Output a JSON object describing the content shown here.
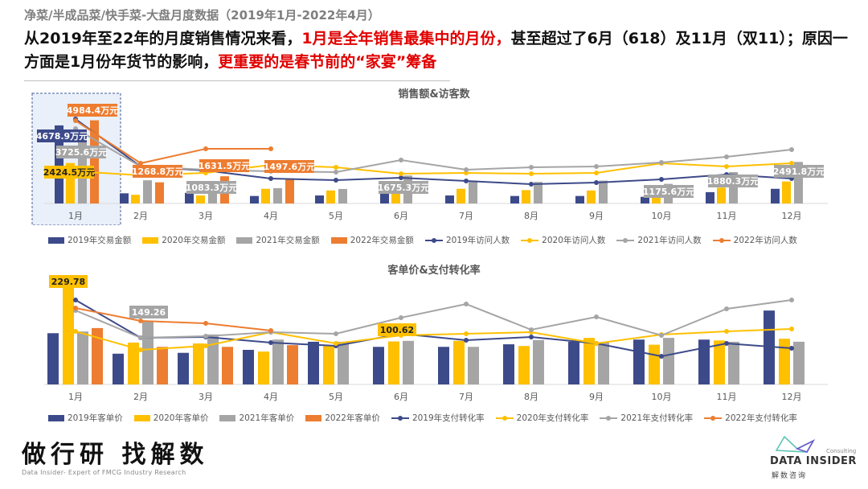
{
  "header": {
    "subtitle": "净菜/半成品菜/快手菜-大盘月度数据（2019年1月-2022年4月）",
    "headline_parts": [
      {
        "text": "从2019年至22年的月度销售情况来看，",
        "highlight": false
      },
      {
        "text": "1月是全年销售最集中的月份，",
        "highlight": true
      },
      {
        "text": "甚至超过了6月（618）及11月（双11）；原因一方面是1月份年货节的影响，",
        "highlight": false
      },
      {
        "text": "更重要的是春节前的“家宴”筹备",
        "highlight": true
      }
    ]
  },
  "colors": {
    "2019": "#3d4a8a",
    "2020": "#ffc000",
    "2021": "#a5a5a5",
    "2022": "#ed7d31",
    "highlight_text": "#e00000",
    "highlight_box": "#dbe6f5"
  },
  "chart_data": [
    {
      "type": "bar+line",
      "title": "销售额&访客数",
      "categories": [
        "1月",
        "2月",
        "3月",
        "4月",
        "5月",
        "6月",
        "7月",
        "8月",
        "9月",
        "10月",
        "11月",
        "12月"
      ],
      "bar_unit": "万元",
      "highlighted_category": "1月",
      "bar_series": [
        {
          "name": "2019年交易金额",
          "color": "#3d4a8a",
          "values": [
            4678.9,
            610,
            640,
            450,
            480,
            680,
            480,
            450,
            450,
            400,
            680,
            880
          ]
        },
        {
          "name": "2020年交易金额",
          "color": "#ffc000",
          "values": [
            2424.5,
            520,
            480,
            880,
            780,
            680,
            880,
            800,
            780,
            500,
            950,
            1320
          ]
        },
        {
          "name": "2021年交易金额",
          "color": "#a5a5a5",
          "values": [
            3725.6,
            1390,
            1083.3,
            920,
            870,
            1675.3,
            1370,
            1290,
            1370,
            1175.6,
            1880.3,
            2491.8
          ]
        },
        {
          "name": "2022年交易金额",
          "color": "#ed7d31",
          "values": [
            4984.4,
            1268.8,
            1631.5,
            1497.6,
            null,
            null,
            null,
            null,
            null,
            null,
            null,
            null
          ]
        }
      ],
      "line_series_note_relative_scale": true,
      "line_series": [
        {
          "name": "2019年访问人数",
          "color": "#3d4a8a",
          "values": [
            105,
            46,
            41,
            31,
            29,
            32,
            28,
            24,
            26,
            30,
            36,
            31
          ]
        },
        {
          "name": "2020年访问人数",
          "color": "#ffc000",
          "values": [
            40,
            35,
            38,
            48,
            45,
            37,
            38,
            37,
            38,
            50,
            46,
            50
          ]
        },
        {
          "name": "2021年访问人数",
          "color": "#a5a5a5",
          "values": [
            93,
            46,
            42,
            40,
            39,
            54,
            42,
            45,
            46,
            51,
            58,
            67
          ]
        },
        {
          "name": "2022年访问人数",
          "color": "#ed7d31",
          "values": [
            103,
            50,
            68,
            68,
            null,
            null,
            null,
            null,
            null,
            null,
            null,
            null
          ]
        }
      ],
      "data_labels": [
        {
          "series": 3,
          "month": 0,
          "text": "4984.4万元"
        },
        {
          "series": 0,
          "month": 0,
          "text": "4678.9万元"
        },
        {
          "series": 2,
          "month": 0,
          "text": "3725.6万元"
        },
        {
          "series": 1,
          "month": 0,
          "text": "2424.5万元"
        },
        {
          "series": 3,
          "month": 1,
          "text": "1268.8万元"
        },
        {
          "series": 3,
          "month": 2,
          "text": "1631.5万元"
        },
        {
          "series": 2,
          "month": 2,
          "text": "1083.3万元"
        },
        {
          "series": 3,
          "month": 3,
          "text": "1497.6万元"
        },
        {
          "series": 2,
          "month": 5,
          "text": "1675.3万元"
        },
        {
          "series": 2,
          "month": 9,
          "text": "1175.6万元"
        },
        {
          "series": 2,
          "month": 10,
          "text": "1880.3万元"
        },
        {
          "series": 2,
          "month": 11,
          "text": "2491.8万元"
        }
      ],
      "legend_position": "bottom",
      "grid": false
    },
    {
      "type": "bar+line",
      "title": "客单价&支付转化率",
      "categories": [
        "1月",
        "2月",
        "3月",
        "4月",
        "5月",
        "6月",
        "7月",
        "8月",
        "9月",
        "10月",
        "11月",
        "12月"
      ],
      "bar_series": [
        {
          "name": "2019年客单价",
          "color": "#3d4a8a",
          "values": [
            120,
            72,
            74,
            81,
            100,
            88,
            88,
            94,
            100,
            105,
            105,
            173
          ]
        },
        {
          "name": "2020年客单价",
          "color": "#ffc000",
          "values": [
            229.78,
            98,
            96,
            77,
            92,
            100.62,
            102,
            90,
            109,
            93,
            103,
            107
          ]
        },
        {
          "name": "2021年客单价",
          "color": "#a5a5a5",
          "values": [
            124,
            149.26,
            117,
            105,
            100,
            102,
            88,
            104,
            98,
            109,
            100,
            100
          ]
        },
        {
          "name": "2022年客单价",
          "color": "#ed7d31",
          "values": [
            132,
            88,
            88,
            92,
            null,
            null,
            null,
            null,
            null,
            null,
            null,
            null
          ]
        }
      ],
      "line_series": [
        {
          "name": "2019年支付转化率",
          "color": "#3d4a8a",
          "values": [
            105,
            58,
            59,
            52,
            48,
            63,
            55,
            59,
            51,
            35,
            51,
            45
          ]
        },
        {
          "name": "2020年支付转化率",
          "color": "#ffc000",
          "values": [
            66,
            43,
            48,
            65,
            51,
            61,
            63,
            65,
            51,
            62,
            66,
            69
          ]
        },
        {
          "name": "2021年支付转化率",
          "color": "#a5a5a5",
          "values": [
            92,
            58,
            60,
            65,
            63,
            83,
            100,
            68,
            84,
            61,
            94,
            105
          ]
        },
        {
          "name": "2022年支付转化率",
          "color": "#ed7d31",
          "values": [
            95,
            79,
            76,
            67,
            null,
            null,
            null,
            null,
            null,
            null,
            null,
            null
          ]
        }
      ],
      "data_labels": [
        {
          "series": 1,
          "month": 0,
          "text": "229.78"
        },
        {
          "series": 2,
          "month": 1,
          "text": "149.26"
        },
        {
          "series": 1,
          "month": 5,
          "text": "100.62"
        }
      ],
      "legend_position": "bottom",
      "grid": false
    }
  ],
  "footer": {
    "slogan": "做行研 找解数",
    "tagline": "Data Insider- Expert of FMCG Industry Research",
    "brand_name": "DATA INSIDER",
    "brand_sub": "Consulting",
    "brand_cn": "解数咨询"
  }
}
